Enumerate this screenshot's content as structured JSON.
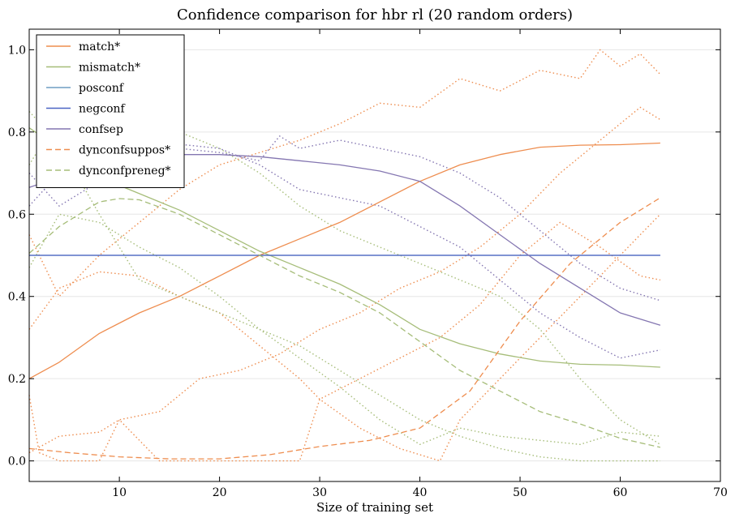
{
  "chart_data": {
    "type": "line",
    "title": "Confidence comparison for hbr rl (20 random orders)",
    "xlabel": "Size of training set",
    "ylabel": "",
    "xlim": [
      1,
      70
    ],
    "ylim": [
      -0.05,
      1.05
    ],
    "xticks": [
      10,
      20,
      30,
      40,
      50,
      60,
      70
    ],
    "yticks": [
      0.0,
      0.2,
      0.4,
      0.6,
      0.8,
      1.0
    ],
    "ytick_labels": [
      "0.0",
      "0.2",
      "0.4",
      "0.6",
      "0.8",
      "1.0"
    ],
    "grid": "horizontal",
    "legend_position": "top-left",
    "series": [
      {
        "name": "match*",
        "color": "#ee8d4f",
        "style": "solid",
        "x": [
          1,
          4,
          8,
          12,
          16,
          20,
          24,
          28,
          32,
          36,
          40,
          44,
          48,
          52,
          56,
          60,
          64
        ],
        "values": [
          0.2,
          0.24,
          0.31,
          0.36,
          0.4,
          0.45,
          0.5,
          0.54,
          0.58,
          0.63,
          0.68,
          0.72,
          0.745,
          0.763,
          0.768,
          0.769,
          0.773
        ]
      },
      {
        "name": "mismatch*",
        "color": "#a6bd79",
        "style": "solid",
        "x": [
          1,
          4,
          8,
          12,
          16,
          20,
          24,
          28,
          32,
          36,
          40,
          44,
          48,
          52,
          56,
          60,
          64
        ],
        "values": [
          0.81,
          0.76,
          0.69,
          0.65,
          0.61,
          0.56,
          0.51,
          0.47,
          0.43,
          0.38,
          0.32,
          0.285,
          0.26,
          0.243,
          0.235,
          0.233,
          0.228
        ]
      },
      {
        "name": "posconf",
        "color": "#6e9dc3",
        "style": "solid",
        "x": [
          1,
          64
        ],
        "values": [
          0.5,
          0.5
        ]
      },
      {
        "name": "negconf",
        "color": "#4a63c4",
        "style": "solid",
        "x": [
          1,
          64
        ],
        "values": [
          0.5,
          0.5
        ]
      },
      {
        "name": "confsep",
        "color": "#8476b1",
        "style": "solid",
        "x": [
          1,
          4,
          8,
          12,
          16,
          20,
          24,
          28,
          32,
          36,
          40,
          44,
          48,
          52,
          56,
          60,
          64
        ],
        "values": [
          0.665,
          0.69,
          0.72,
          0.74,
          0.745,
          0.745,
          0.74,
          0.73,
          0.72,
          0.705,
          0.68,
          0.62,
          0.55,
          0.48,
          0.42,
          0.36,
          0.33
        ]
      },
      {
        "name": "dynconfsuppos*",
        "color": "#ee8d4f",
        "style": "dashed",
        "x": [
          1,
          5,
          10,
          15,
          20,
          25,
          30,
          35,
          40,
          45,
          50,
          55,
          60,
          64
        ],
        "values": [
          0.03,
          0.02,
          0.01,
          0.005,
          0.005,
          0.015,
          0.035,
          0.05,
          0.08,
          0.17,
          0.34,
          0.48,
          0.58,
          0.64
        ]
      },
      {
        "name": "dynconfpreneg*",
        "color": "#a6bd79",
        "style": "dashed",
        "x": [
          1,
          4,
          8,
          10,
          12,
          16,
          20,
          24,
          28,
          32,
          36,
          40,
          44,
          48,
          52,
          56,
          60,
          64
        ],
        "values": [
          0.505,
          0.57,
          0.63,
          0.638,
          0.635,
          0.6,
          0.55,
          0.5,
          0.45,
          0.41,
          0.36,
          0.29,
          0.22,
          0.17,
          0.12,
          0.09,
          0.055,
          0.033
        ]
      },
      {
        "name": "",
        "color": "#ee8d4f",
        "style": "dotted",
        "x": [
          1,
          4,
          8,
          12,
          16,
          20,
          24,
          28,
          32,
          36,
          40,
          44,
          48,
          52,
          56,
          58,
          60,
          62,
          64
        ],
        "values": [
          0.55,
          0.4,
          0.5,
          0.58,
          0.66,
          0.72,
          0.75,
          0.78,
          0.82,
          0.87,
          0.86,
          0.93,
          0.9,
          0.95,
          0.93,
          1.0,
          0.96,
          0.99,
          0.94
        ]
      },
      {
        "name": "",
        "color": "#ee8d4f",
        "style": "dotted",
        "x": [
          1,
          4,
          8,
          10,
          14,
          18,
          22,
          26,
          30,
          34,
          38,
          42,
          46,
          50,
          54,
          58,
          62,
          64
        ],
        "values": [
          0.02,
          0.06,
          0.07,
          0.1,
          0.12,
          0.2,
          0.22,
          0.26,
          0.32,
          0.36,
          0.42,
          0.46,
          0.52,
          0.6,
          0.7,
          0.78,
          0.86,
          0.83
        ]
      },
      {
        "name": "",
        "color": "#ee8d4f",
        "style": "dotted",
        "x": [
          1,
          4,
          8,
          12,
          16,
          20,
          24,
          28,
          30,
          34,
          38,
          42,
          44,
          46,
          50,
          54,
          58,
          62,
          64
        ],
        "values": [
          0.32,
          0.42,
          0.46,
          0.45,
          0.4,
          0.36,
          0.28,
          0.2,
          0.15,
          0.08,
          0.03,
          0.0,
          0.1,
          0.15,
          0.25,
          0.35,
          0.45,
          0.55,
          0.6
        ]
      },
      {
        "name": "",
        "color": "#ee8d4f",
        "style": "dotted",
        "x": [
          1,
          2,
          4,
          8,
          10,
          14,
          18,
          22,
          26,
          28,
          30,
          34,
          38,
          42,
          46,
          50,
          54,
          58,
          62,
          64
        ],
        "values": [
          0.16,
          0.02,
          0.0,
          0.0,
          0.1,
          0.0,
          0.0,
          0.0,
          0.0,
          0.0,
          0.15,
          0.2,
          0.25,
          0.3,
          0.38,
          0.5,
          0.58,
          0.52,
          0.45,
          0.44
        ]
      },
      {
        "name": "",
        "color": "#a6bd79",
        "style": "dotted",
        "x": [
          1,
          4,
          8,
          12,
          16,
          20,
          24,
          28,
          32,
          36,
          40,
          44,
          48,
          52,
          56,
          60,
          64
        ],
        "values": [
          0.85,
          0.77,
          0.6,
          0.44,
          0.4,
          0.36,
          0.32,
          0.28,
          0.22,
          0.16,
          0.1,
          0.06,
          0.03,
          0.01,
          0.0,
          0.0,
          0.0
        ]
      },
      {
        "name": "",
        "color": "#a6bd79",
        "style": "dotted",
        "x": [
          1,
          4,
          8,
          12,
          16,
          20,
          24,
          28,
          32,
          36,
          40,
          44,
          48,
          52,
          56,
          60,
          64
        ],
        "values": [
          0.47,
          0.6,
          0.58,
          0.52,
          0.47,
          0.4,
          0.32,
          0.25,
          0.18,
          0.1,
          0.04,
          0.08,
          0.06,
          0.05,
          0.04,
          0.07,
          0.06
        ]
      },
      {
        "name": "",
        "color": "#a6bd79",
        "style": "dotted",
        "x": [
          1,
          4,
          8,
          12,
          16,
          20,
          24,
          28,
          32,
          36,
          40,
          44,
          48,
          52,
          56,
          60,
          64
        ],
        "values": [
          0.72,
          0.84,
          0.86,
          0.84,
          0.8,
          0.76,
          0.7,
          0.62,
          0.56,
          0.52,
          0.48,
          0.44,
          0.4,
          0.32,
          0.2,
          0.1,
          0.04
        ]
      },
      {
        "name": "",
        "color": "#8476b1",
        "style": "dotted",
        "x": [
          1,
          4,
          8,
          12,
          16,
          20,
          24,
          26,
          28,
          32,
          36,
          40,
          44,
          48,
          52,
          56,
          60,
          64
        ],
        "values": [
          0.7,
          0.62,
          0.68,
          0.74,
          0.76,
          0.75,
          0.73,
          0.79,
          0.76,
          0.78,
          0.76,
          0.74,
          0.7,
          0.64,
          0.56,
          0.48,
          0.42,
          0.39
        ]
      },
      {
        "name": "",
        "color": "#8476b1",
        "style": "dotted",
        "x": [
          1,
          4,
          8,
          12,
          16,
          20,
          24,
          28,
          32,
          36,
          40,
          44,
          48,
          52,
          56,
          60,
          64
        ],
        "values": [
          0.62,
          0.7,
          0.74,
          0.76,
          0.77,
          0.76,
          0.72,
          0.66,
          0.64,
          0.62,
          0.57,
          0.52,
          0.44,
          0.36,
          0.3,
          0.25,
          0.27
        ]
      }
    ]
  }
}
